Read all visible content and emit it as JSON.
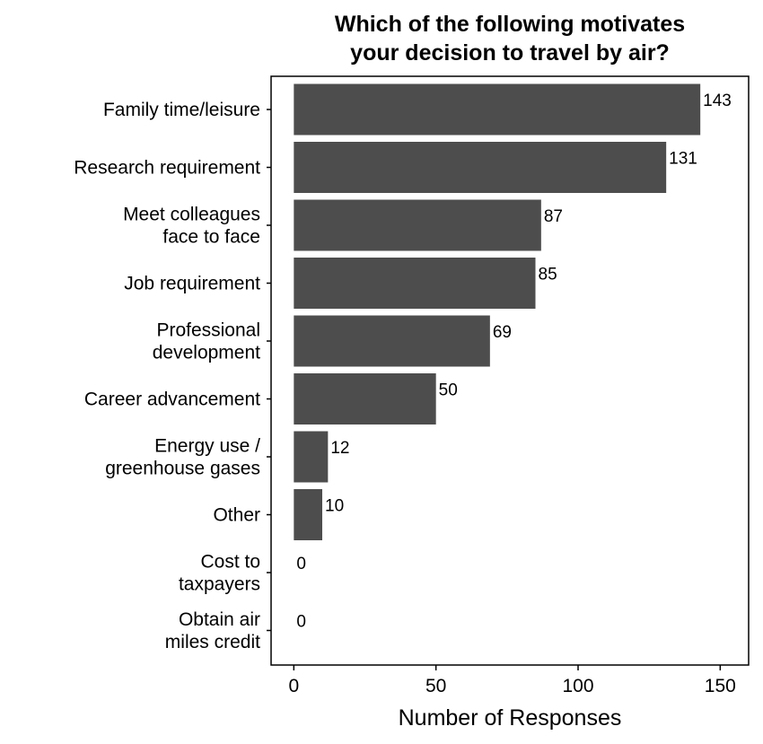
{
  "chart_data": {
    "type": "bar",
    "orientation": "horizontal",
    "title_lines": [
      "Which of the following motivates",
      "your decision to travel by air?"
    ],
    "categories": [
      [
        "Family time/leisure"
      ],
      [
        "Research requirement"
      ],
      [
        "Meet colleagues",
        "face to face"
      ],
      [
        "Job requirement"
      ],
      [
        "Professional",
        "development"
      ],
      [
        "Career advancement"
      ],
      [
        "Energy use /",
        "greenhouse gases"
      ],
      [
        "Other"
      ],
      [
        "Cost to",
        "taxpayers"
      ],
      [
        "Obtain air",
        "miles credit"
      ]
    ],
    "values": [
      143,
      131,
      87,
      85,
      69,
      50,
      12,
      10,
      0,
      0
    ],
    "xlabel": "Number of Responses",
    "ylabel": "",
    "xlim": [
      -8,
      160
    ],
    "xticks": [
      0,
      50,
      100,
      150
    ],
    "grid": false,
    "data_labels": true,
    "bar_color": "#4d4d4d"
  }
}
